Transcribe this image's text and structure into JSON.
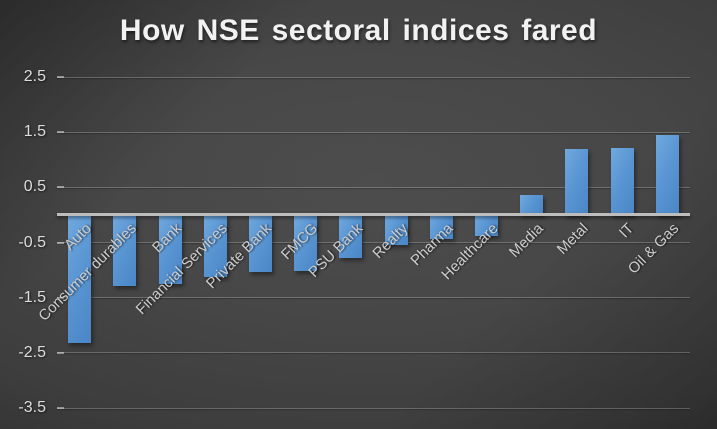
{
  "slide": {
    "title": "How NSE sectoral indices fared"
  },
  "chart_data": {
    "type": "bar",
    "title": "How NSE sectoral indices fared",
    "categories": [
      "Auto",
      "Consumer durables",
      "Bank",
      "Financial Services",
      "Private Bank",
      "FMCG",
      "PSU Bank",
      "Realty",
      "Pharma",
      "Healthcare",
      "Media",
      "Metal",
      "IT",
      "Oil & Gas"
    ],
    "values": [
      -2.32,
      -1.28,
      -1.25,
      -1.12,
      -1.03,
      -1.01,
      -0.79,
      -0.55,
      -0.43,
      -0.39,
      0.37,
      1.19,
      1.22,
      1.45
    ],
    "xlabel": "",
    "ylabel": "",
    "ylim": [
      -3.5,
      2.5
    ],
    "yticks": [
      2.5,
      1.5,
      0.5,
      -0.5,
      -1.5,
      -2.5,
      -3.5
    ],
    "ytick_labels": [
      "2.5",
      "1.5",
      "0.5",
      "-0.5",
      "-1.5",
      "-2.5",
      "-3.5"
    ],
    "grid": true,
    "legend": false,
    "colors": {
      "bar_top": "#71a9df",
      "bar_bottom": "#4a86c6",
      "background_center": "#4d4d4d",
      "background_edge": "#1e1e1e",
      "gridline": "#6f6f6f",
      "axis_line": "#bdbdbd",
      "tick_label": "#dcdcdc",
      "category_label": "#cccccc",
      "title": "#f2f2f2"
    }
  }
}
